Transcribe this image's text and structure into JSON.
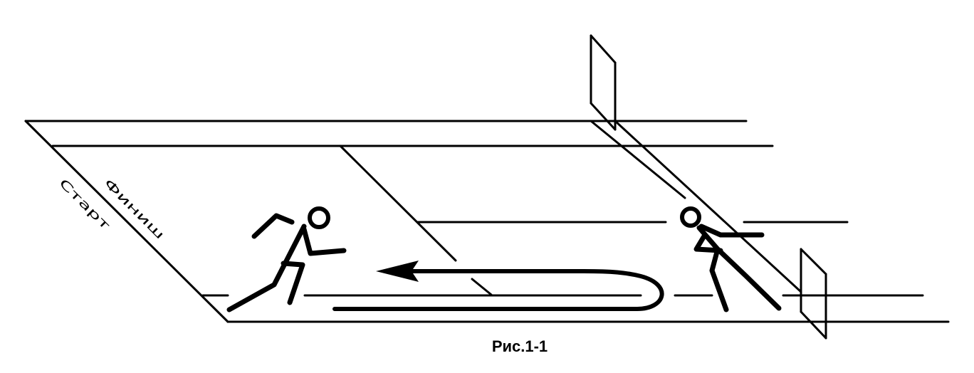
{
  "figure": {
    "caption": "Рис.1-1",
    "finish_label": "Финиш",
    "start_label": "Старт"
  },
  "colors": {
    "ink": "#000000",
    "background": "#ffffff"
  }
}
